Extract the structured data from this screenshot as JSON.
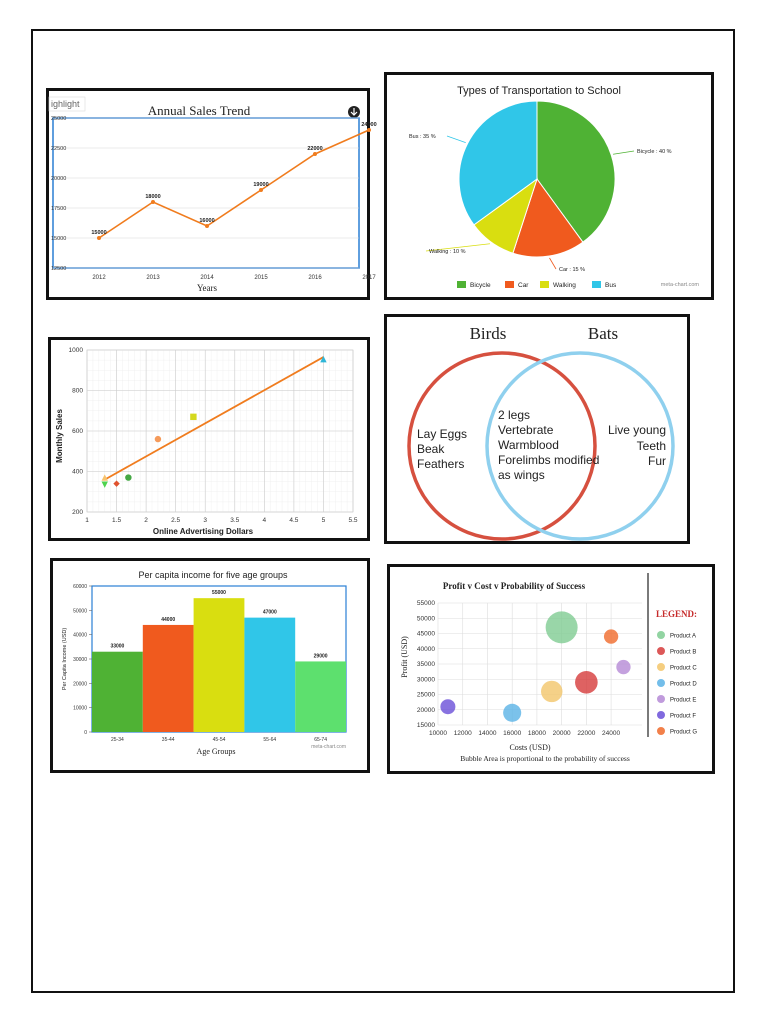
{
  "chart_data": [
    {
      "type": "line",
      "tab_label": "ighlight",
      "title": "Annual Sales Trend",
      "xlabel": "Years",
      "ylabel": "",
      "categories": [
        "2012",
        "2013",
        "2014",
        "2015",
        "2016",
        "2017"
      ],
      "values": [
        15000,
        18000,
        16000,
        19000,
        22000,
        24000
      ],
      "data_labels": [
        "15000",
        "18000",
        "16000",
        "19000",
        "22000",
        "24000"
      ],
      "yticks": [
        "12500",
        "15000",
        "17500",
        "20000",
        "22500",
        "25000"
      ],
      "ylim": [
        12500,
        25000
      ],
      "grid": true,
      "color": "#f07c1e"
    },
    {
      "type": "pie",
      "title": "Types of Transportation to School",
      "categories": [
        "Bicycle",
        "Car",
        "Walking",
        "Bus"
      ],
      "values": [
        40,
        15,
        10,
        35
      ],
      "slice_labels": [
        "Bicycle : 40 %",
        "Car : 15 %",
        "Walking : 10 %",
        "Bus : 35 %"
      ],
      "colors": [
        "#4fb234",
        "#f05a1e",
        "#d9de10",
        "#30c6e8"
      ],
      "legend": "bottom",
      "watermark": "meta-chart.com"
    },
    {
      "type": "scatter",
      "title": "",
      "xlabel": "Online Advertising Dollars",
      "ylabel": "Monthly Sales",
      "xticks": [
        "1",
        "1.5",
        "2",
        "2.5",
        "3",
        "3.5",
        "4",
        "4.5",
        "5",
        "5.5"
      ],
      "yticks": [
        "200",
        "400",
        "600",
        "800",
        "1000"
      ],
      "xlim": [
        1,
        5.5
      ],
      "ylim": [
        200,
        1000
      ],
      "points": [
        {
          "x": 1.3,
          "y": 370,
          "color": "#f7c36e",
          "shape": "triangle"
        },
        {
          "x": 1.3,
          "y": 335,
          "color": "#4fd34f",
          "shape": "triangle-down"
        },
        {
          "x": 1.5,
          "y": 340,
          "color": "#e0522e",
          "shape": "diamond"
        },
        {
          "x": 1.7,
          "y": 370,
          "color": "#45a844",
          "shape": "circle"
        },
        {
          "x": 2.2,
          "y": 560,
          "color": "#f59a5a",
          "shape": "circle"
        },
        {
          "x": 2.8,
          "y": 670,
          "color": "#d4d81e",
          "shape": "square"
        },
        {
          "x": 5.0,
          "y": 955,
          "color": "#2eb6d8",
          "shape": "triangle"
        }
      ],
      "trendline": {
        "x": [
          1.3,
          5.0
        ],
        "y": [
          360,
          965
        ],
        "color": "#f07c1e"
      },
      "grid": true
    },
    {
      "type": "other",
      "subtype": "venn",
      "sets": [
        {
          "name": "Birds",
          "only": [
            "Lay Eggs",
            "Beak",
            "Feathers"
          ],
          "color": "#d6503f"
        },
        {
          "name": "Bats",
          "only": [
            "Live young",
            "Teeth",
            "Fur"
          ],
          "color": "#8fd0ee"
        }
      ],
      "intersection": [
        "2 legs",
        "Vertebrate",
        "Warmblood",
        "Forelimbs modified",
        "as wings"
      ]
    },
    {
      "type": "bar",
      "title": "Per capita income for five age groups",
      "xlabel": "Age Groups",
      "ylabel": "Per Capita Income (USD)",
      "categories": [
        "25-34",
        "35-44",
        "45-54",
        "55-64",
        "65-74"
      ],
      "values": [
        33000,
        44000,
        55000,
        47000,
        29000
      ],
      "data_labels": [
        "33000",
        "44000",
        "55000",
        "47000",
        "29000"
      ],
      "colors": [
        "#4fb234",
        "#f05a1e",
        "#d9de10",
        "#30c6e8",
        "#5de06e"
      ],
      "yticks": [
        "0",
        "10000",
        "20000",
        "30000",
        "40000",
        "50000",
        "60000"
      ],
      "ylim": [
        0,
        60000
      ],
      "watermark": "meta-chart.com"
    },
    {
      "type": "scatter",
      "subtype": "bubble",
      "title": "Profit v Cost v Probability of Success",
      "xlabel": "Costs (USD)",
      "ylabel": "Profit (USD)",
      "subtitle": "Bubble Area is proportional to the probability of success",
      "legend_title": "LEGEND:",
      "xticks": [
        "10000",
        "12000",
        "14000",
        "16000",
        "18000",
        "20000",
        "22000",
        "24000"
      ],
      "yticks": [
        "15000",
        "20000",
        "25000",
        "30000",
        "35000",
        "40000",
        "45000",
        "50000",
        "55000"
      ],
      "xlim": [
        10000,
        26500
      ],
      "ylim": [
        15000,
        55000
      ],
      "grid": true,
      "legend": "right",
      "series": [
        {
          "name": "Product A",
          "x": 20000,
          "y": 47000,
          "size": 1.0,
          "color": "#7fcc92"
        },
        {
          "name": "Product B",
          "x": 22000,
          "y": 29000,
          "size": 0.5,
          "color": "#d63b3b"
        },
        {
          "name": "Product C",
          "x": 19200,
          "y": 26000,
          "size": 0.45,
          "color": "#f3c56a"
        },
        {
          "name": "Product D",
          "x": 16000,
          "y": 19000,
          "size": 0.32,
          "color": "#5ab3e6"
        },
        {
          "name": "Product E",
          "x": 25000,
          "y": 34000,
          "size": 0.2,
          "color": "#b58ad6"
        },
        {
          "name": "Product F",
          "x": 10800,
          "y": 21000,
          "size": 0.22,
          "color": "#6a4fd8"
        },
        {
          "name": "Product G",
          "x": 24000,
          "y": 44000,
          "size": 0.2,
          "color": "#f06a2a"
        }
      ]
    }
  ]
}
